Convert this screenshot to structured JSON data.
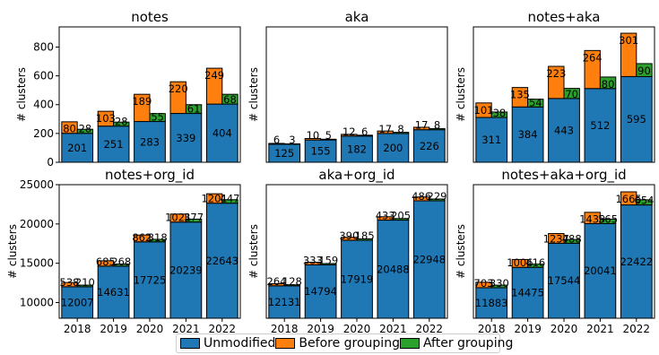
{
  "colors": {
    "unmodified": "#1f77b4",
    "before": "#ff7f0e",
    "after": "#2ca02c"
  },
  "legend": [
    {
      "label": "Unmodified",
      "color": "#1f77b4"
    },
    {
      "label": "Before grouping",
      "color": "#ff7f0e"
    },
    {
      "label": "After grouping",
      "color": "#2ca02c"
    }
  ],
  "chart_data": [
    {
      "type": "bar",
      "title": "notes",
      "ylabel": "# clusters",
      "ylim": [
        0,
        940
      ],
      "yticks": [
        0,
        200,
        400,
        600,
        800
      ],
      "categories": [
        "2018",
        "2019",
        "2020",
        "2021",
        "2022"
      ],
      "series": [
        {
          "name": "Unmodified",
          "values": [
            201,
            251,
            283,
            339,
            404
          ]
        },
        {
          "name": "Before grouping",
          "values": [
            80,
            103,
            189,
            220,
            249
          ]
        },
        {
          "name": "After grouping",
          "values": [
            28,
            28,
            55,
            61,
            68
          ]
        }
      ]
    },
    {
      "type": "bar",
      "title": "aka",
      "ylabel": "# clusters",
      "ylim": [
        0,
        940
      ],
      "yticks": [],
      "categories": [
        "2018",
        "2019",
        "2020",
        "2021",
        "2022"
      ],
      "series": [
        {
          "name": "Unmodified",
          "values": [
            125,
            155,
            182,
            200,
            226
          ]
        },
        {
          "name": "Before grouping",
          "values": [
            6,
            10,
            12,
            17,
            17
          ]
        },
        {
          "name": "After grouping",
          "values": [
            3,
            5,
            6,
            8,
            8
          ]
        }
      ]
    },
    {
      "type": "bar",
      "title": "notes+aka",
      "ylabel": "# clusters",
      "ylim": [
        0,
        940
      ],
      "yticks": [],
      "categories": [
        "2018",
        "2019",
        "2020",
        "2021",
        "2022"
      ],
      "series": [
        {
          "name": "Unmodified",
          "values": [
            311,
            384,
            443,
            512,
            595
          ]
        },
        {
          "name": "Before grouping",
          "values": [
            101,
            135,
            223,
            264,
            301
          ]
        },
        {
          "name": "After grouping",
          "values": [
            38,
            54,
            70,
            80,
            90
          ]
        }
      ]
    },
    {
      "type": "bar",
      "title": "notes+org_id",
      "ylabel": "# clusters",
      "ylim": [
        8000,
        25000
      ],
      "yticks": [
        10000,
        15000,
        20000,
        25000
      ],
      "categories": [
        "2018",
        "2019",
        "2020",
        "2021",
        "2022"
      ],
      "series": [
        {
          "name": "Unmodified",
          "values": [
            12007,
            14631,
            17725,
            20239,
            22643
          ]
        },
        {
          "name": "Before grouping",
          "values": [
            538,
            685,
            862,
            1021,
            1201
          ]
        },
        {
          "name": "After grouping",
          "values": [
            210,
            268,
            318,
            377,
            447
          ]
        }
      ]
    },
    {
      "type": "bar",
      "title": "aka+org_id",
      "ylabel": "# clusters",
      "ylim": [
        8000,
        25000
      ],
      "yticks": [],
      "categories": [
        "2018",
        "2019",
        "2020",
        "2021",
        "2022"
      ],
      "series": [
        {
          "name": "Unmodified",
          "values": [
            12131,
            14794,
            17919,
            20488,
            22948
          ]
        },
        {
          "name": "Before grouping",
          "values": [
            264,
            333,
            390,
            433,
            486
          ]
        },
        {
          "name": "After grouping",
          "values": [
            128,
            159,
            185,
            205,
            229
          ]
        }
      ]
    },
    {
      "type": "bar",
      "title": "notes+aka+org_id",
      "ylabel": "# clusters",
      "ylim": [
        8000,
        25000
      ],
      "yticks": [],
      "categories": [
        "2018",
        "2019",
        "2020",
        "2021",
        "2022"
      ],
      "series": [
        {
          "name": "Unmodified",
          "values": [
            11883,
            14475,
            17544,
            20041,
            22422
          ]
        },
        {
          "name": "Before grouping",
          "values": [
            703,
            1006,
            1237,
            1439,
            1665
          ]
        },
        {
          "name": "After grouping",
          "values": [
            330,
            416,
            488,
            565,
            654
          ]
        }
      ]
    }
  ]
}
